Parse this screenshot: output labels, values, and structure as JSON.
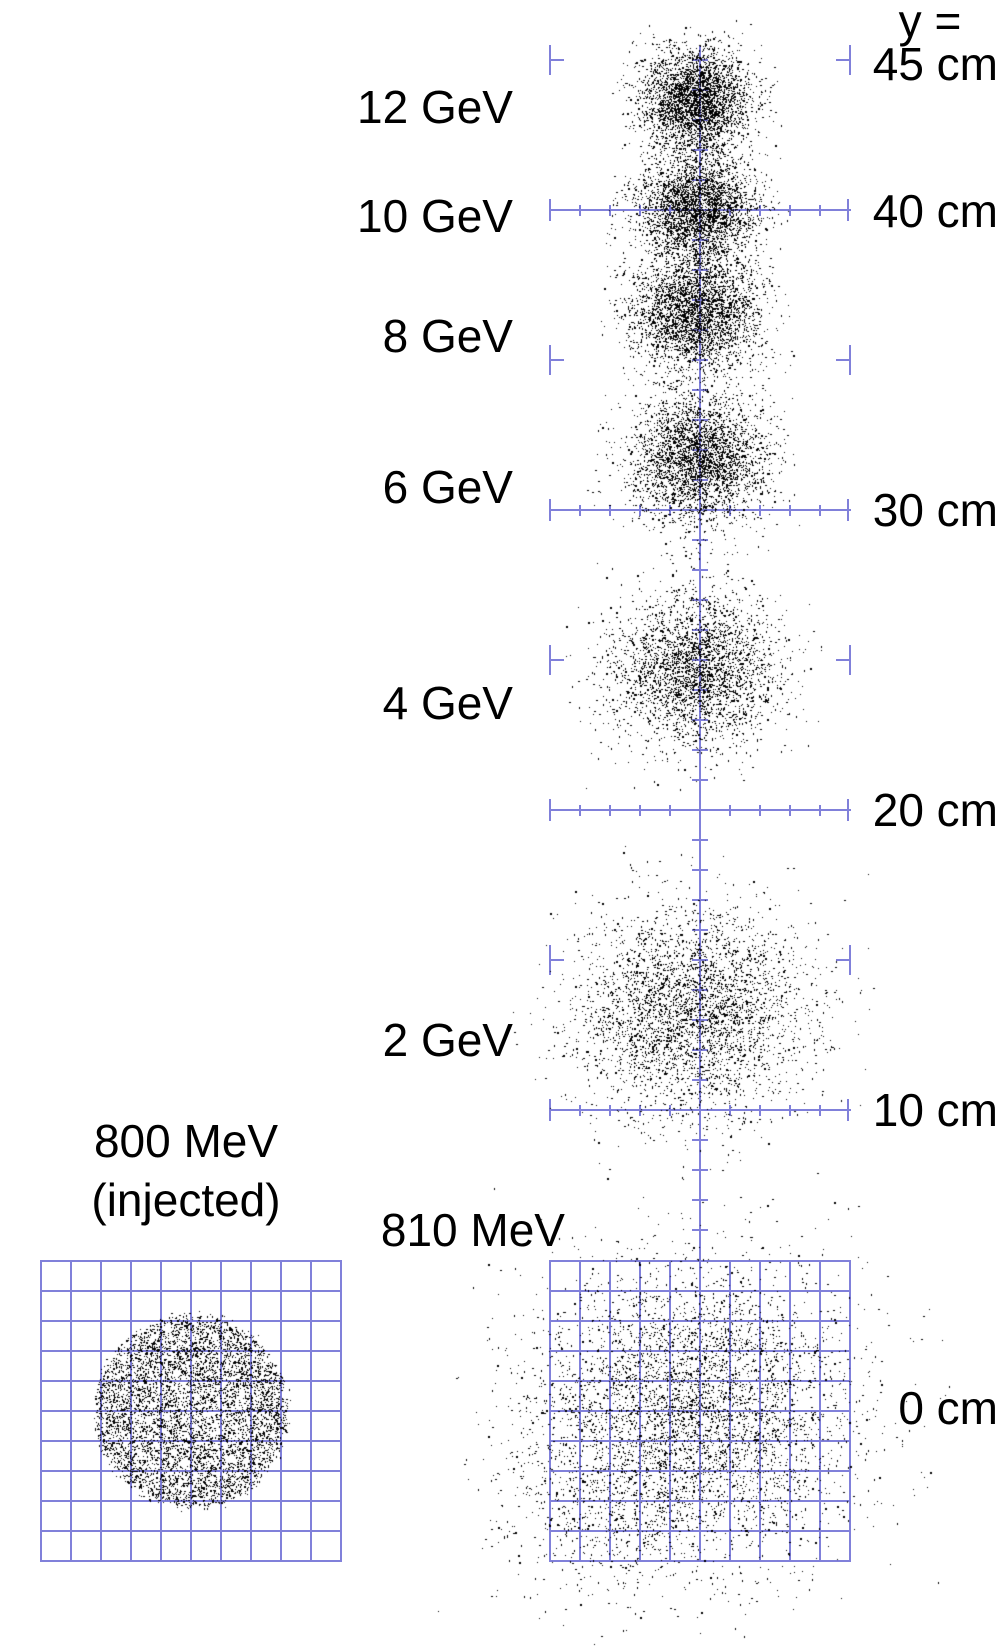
{
  "figure": {
    "background": "#ffffff",
    "axis_color": "#8080da",
    "dot_color": "#000000",
    "text_color": "#000000"
  },
  "axis": {
    "title": "y =",
    "unit": "cm",
    "tick_labels": [
      {
        "text": "45 cm",
        "cm": 45
      },
      {
        "text": "40 cm",
        "cm": 40
      },
      {
        "text": "30 cm",
        "cm": 30
      },
      {
        "text": "20 cm",
        "cm": 20
      },
      {
        "text": "10 cm",
        "cm": 10
      },
      {
        "text": "0 cm",
        "cm": 0
      }
    ],
    "rulers_cm": [
      40,
      30,
      20,
      10
    ],
    "half_ticks_cm": [
      45,
      35,
      25,
      15
    ],
    "ruler_span_cm": 10,
    "minor_tick_cm": 1,
    "grid_cells": 10
  },
  "inset": {
    "label_line1": "800 MeV",
    "label_line2": "(injected)"
  },
  "chart_data": {
    "type": "scatter",
    "title": "y =",
    "y_axis": {
      "unit": "cm",
      "labeled_ticks": [
        45,
        40,
        30,
        20,
        10,
        0
      ],
      "range_cm": [
        0,
        45
      ]
    },
    "x_axis": {
      "unit": "cm",
      "ruler_width_cm": 10
    },
    "beams": [
      {
        "label": "12 GeV",
        "y_cm": 43.7,
        "x_cm": -0.15,
        "sigma_x_cm": 0.9,
        "sigma_y_cm": 0.84,
        "n_points": 3200
      },
      {
        "label": "10 GeV",
        "y_cm": 40.1,
        "x_cm": -0.1,
        "sigma_x_cm": 0.97,
        "sigma_y_cm": 0.9,
        "n_points": 3200
      },
      {
        "label": "8 GeV",
        "y_cm": 36.6,
        "x_cm": -0.17,
        "sigma_x_cm": 1.07,
        "sigma_y_cm": 1.0,
        "n_points": 3200
      },
      {
        "label": "6 GeV",
        "y_cm": 31.7,
        "x_cm": -0.1,
        "sigma_x_cm": 1.15,
        "sigma_y_cm": 1.1,
        "n_points": 3200
      },
      {
        "label": "4 GeV",
        "y_cm": 24.7,
        "x_cm": -0.17,
        "sigma_x_cm": 1.37,
        "sigma_y_cm": 1.27,
        "n_points": 3000
      },
      {
        "label": "2 GeV",
        "y_cm": 13.3,
        "x_cm": -0.27,
        "sigma_x_cm": 1.9,
        "sigma_y_cm": 1.73,
        "n_points": 3600
      },
      {
        "label": "810 MeV",
        "y_cm": 0.17,
        "x_cm": -0.23,
        "sigma_x_cm": 2.67,
        "sigma_y_cm": 2.37,
        "n_points": 4200,
        "halo": [
          {
            "x_cm": -3.2,
            "y_cm": -3.3,
            "sigma_x_cm": 1.8,
            "sigma_y_cm": 1.5,
            "n_points": 330
          },
          {
            "x_cm": -1.2,
            "y_cm": -2.8,
            "sigma_x_cm": 2.8,
            "sigma_y_cm": 1.9,
            "n_points": 450
          }
        ]
      }
    ],
    "injected_beam": {
      "label_line1": "800 MeV",
      "label_line2": "(injected)",
      "radius_cm": 3.2,
      "n_points": 5200
    }
  }
}
